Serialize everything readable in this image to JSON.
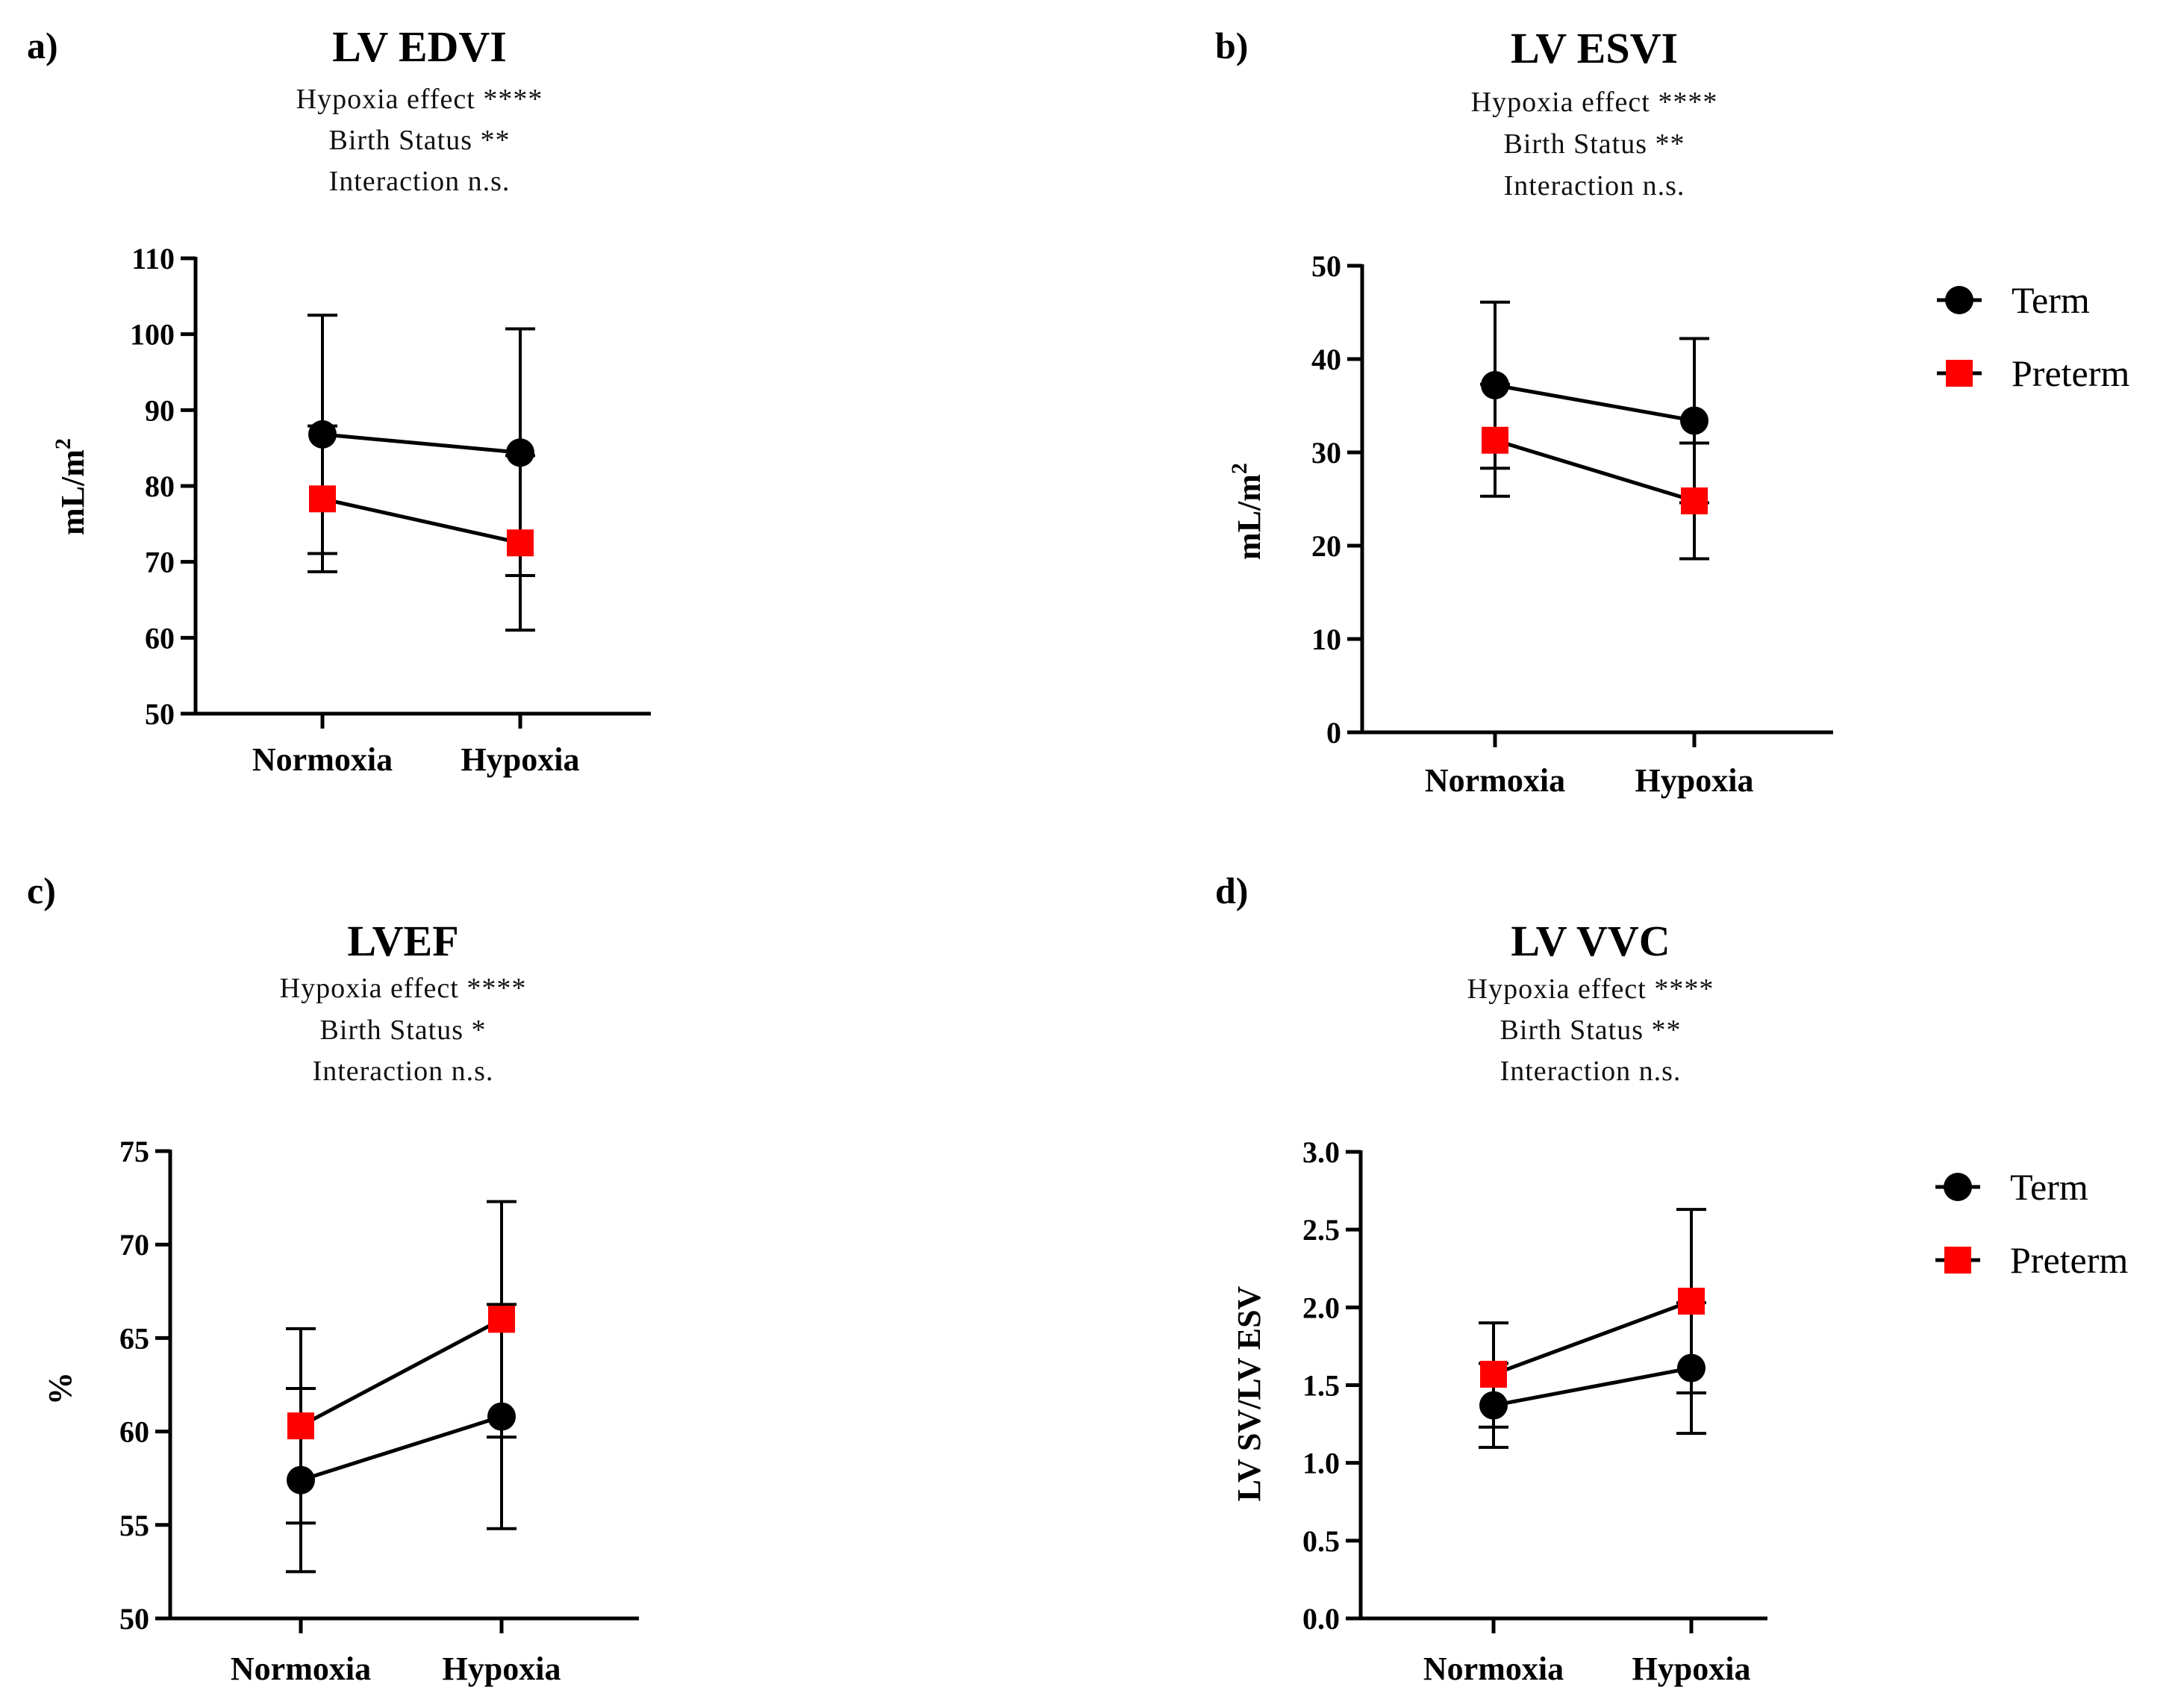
{
  "figure": {
    "legend": {
      "term": "Term",
      "preterm": "Preterm"
    },
    "colors": {
      "term": "#000000",
      "preterm": "#ff0000",
      "axis": "#000000"
    }
  },
  "chart_data": [
    {
      "type": "line",
      "panel_label": "a)",
      "title": "LV EDVI",
      "stats": [
        "Hypoxia effect ****",
        "Birth Status **",
        "Interaction n.s."
      ],
      "ylabel_base": "mL/m",
      "ylabel_sup": "2",
      "ylim": [
        50,
        110
      ],
      "yticks": [
        50,
        60,
        70,
        80,
        90,
        100,
        110
      ],
      "tick_labels": [
        "50",
        "60",
        "70",
        "80",
        "90",
        "100",
        "110"
      ],
      "categories": [
        "Normoxia",
        "Hypoxia"
      ],
      "series": [
        {
          "name": "Term",
          "marker": "circle",
          "values": [
            86.8,
            84.4
          ],
          "lower": [
            71.1,
            68.2
          ],
          "upper": [
            102.5,
            100.7
          ]
        },
        {
          "name": "Preterm",
          "marker": "square",
          "values": [
            78.3,
            72.5
          ],
          "lower": [
            68.7,
            61.0
          ],
          "upper": [
            87.9,
            84.0
          ]
        }
      ],
      "legend_shown": false
    },
    {
      "type": "line",
      "panel_label": "b)",
      "title": "LV ESVI",
      "stats": [
        "Hypoxia effect ****",
        "Birth Status **",
        "Interaction n.s."
      ],
      "ylabel_base": "mL/m",
      "ylabel_sup": "2",
      "ylim": [
        0,
        50
      ],
      "yticks": [
        0,
        10,
        20,
        30,
        40,
        50
      ],
      "tick_labels": [
        "0",
        "10",
        "20",
        "30",
        "40",
        "50"
      ],
      "categories": [
        "Normoxia",
        "Hypoxia"
      ],
      "series": [
        {
          "name": "Term",
          "marker": "circle",
          "values": [
            37.2,
            33.4
          ],
          "lower": [
            28.3,
            24.6
          ],
          "upper": [
            46.1,
            42.2
          ]
        },
        {
          "name": "Preterm",
          "marker": "square",
          "values": [
            31.3,
            24.8
          ],
          "lower": [
            25.3,
            18.6
          ],
          "upper": [
            37.3,
            31.0
          ]
        }
      ],
      "legend_shown": true
    },
    {
      "type": "line",
      "panel_label": "c)",
      "title": "LVEF",
      "stats": [
        "Hypoxia effect ****",
        "Birth Status *",
        "Interaction n.s."
      ],
      "ylabel_base": "%",
      "ylabel_sup": "",
      "ylim": [
        50,
        75
      ],
      "yticks": [
        50,
        55,
        60,
        65,
        70,
        75
      ],
      "tick_labels": [
        "50",
        "55",
        "60",
        "65",
        "70",
        "75"
      ],
      "categories": [
        "Normoxia",
        "Hypoxia"
      ],
      "series": [
        {
          "name": "Term",
          "marker": "circle",
          "values": [
            57.4,
            60.8
          ],
          "lower": [
            52.5,
            54.8
          ],
          "upper": [
            62.3,
            66.8
          ]
        },
        {
          "name": "Preterm",
          "marker": "square",
          "values": [
            60.3,
            66.0
          ],
          "lower": [
            55.1,
            59.7
          ],
          "upper": [
            65.5,
            72.3
          ]
        }
      ],
      "legend_shown": false
    },
    {
      "type": "line",
      "panel_label": "d)",
      "title": "LV VVC",
      "stats": [
        "Hypoxia effect ****",
        "Birth Status **",
        "Interaction n.s."
      ],
      "ylabel_base": "LV SV/LV ESV",
      "ylabel_sup": "",
      "ylim": [
        0,
        3
      ],
      "yticks": [
        0,
        0.5,
        1,
        1.5,
        2,
        2.5,
        3
      ],
      "tick_labels": [
        "0.0",
        "0.5",
        "1.0",
        "1.5",
        "2.0",
        "2.5",
        "3.0"
      ],
      "categories": [
        "Normoxia",
        "Hypoxia"
      ],
      "series": [
        {
          "name": "Term",
          "marker": "circle",
          "values": [
            1.37,
            1.61
          ],
          "lower": [
            1.1,
            1.19
          ],
          "upper": [
            1.64,
            2.03
          ]
        },
        {
          "name": "Preterm",
          "marker": "square",
          "values": [
            1.57,
            2.04
          ],
          "lower": [
            1.23,
            1.45
          ],
          "upper": [
            1.9,
            2.63
          ]
        }
      ],
      "legend_shown": true
    }
  ]
}
